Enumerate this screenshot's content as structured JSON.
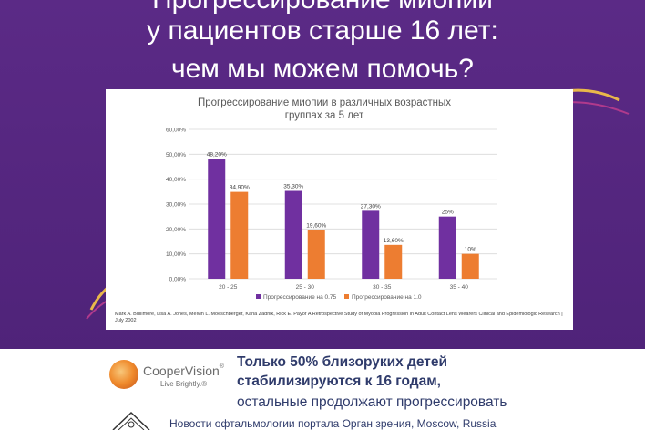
{
  "slide": {
    "headline_line0": "Прогрессирование миопии",
    "headline_line1": "у пациентов старше 16 лет:",
    "headline_line2": "чем мы можем помочь?",
    "colors": {
      "background": "#5b2a86",
      "accent_orange": "#ed7d31",
      "accent_purple": "#7030a0"
    }
  },
  "chart_data": {
    "type": "bar",
    "title": "Прогрессирование миопии в различных возрастных группах за 5 лет",
    "title_line1": "Прогрессирование миопии в различных возрастных",
    "title_line2": "группах за 5 лет",
    "categories": [
      "20 - 25",
      "25 - 30",
      "30 - 35",
      "35 - 40"
    ],
    "series": [
      {
        "name": "Прогрессирование на 0.75",
        "values": [
          48.2,
          35.3,
          27.3,
          25
        ],
        "labels": [
          "48,20%",
          "35,30%",
          "27,30%",
          "25%"
        ],
        "color": "#7030a0"
      },
      {
        "name": "Прогрессирование на 1.0",
        "values": [
          34.9,
          19.6,
          13.6,
          10
        ],
        "labels": [
          "34,90%",
          "19,60%",
          "13,60%",
          "10%"
        ],
        "color": "#ed7d31"
      }
    ],
    "ylim": [
      0,
      60
    ],
    "yticks": [
      "0,00%",
      "10,00%",
      "20,00%",
      "30,00%",
      "40,00%",
      "50,00%",
      "60,00%"
    ],
    "ytick_values": [
      0,
      10,
      20,
      30,
      40,
      50,
      60
    ],
    "grid": true,
    "legend_position": "bottom",
    "citation": "Mark A. Bullimore, Lisa A. Jones, Melvin L. Moeschberger, Karla Zadnik, Rick E. Payor A Retrospective Study of Myopia Progression in Adult Contact Lens Wearers Clinical and Epidemiologic Research | July 2002"
  },
  "footer": {
    "brand_name": "CooperVision",
    "brand_reg": "®",
    "brand_tagline": "Live Brightly.®",
    "message_line1": "Только 50% близоруких детей",
    "message_line2": "стабилизируются к 16 годам,",
    "message_line3": "остальные продолжают прогрессировать",
    "news_line": "Новости офтальмологии портала Орган зрения, Moscow, Russia"
  }
}
